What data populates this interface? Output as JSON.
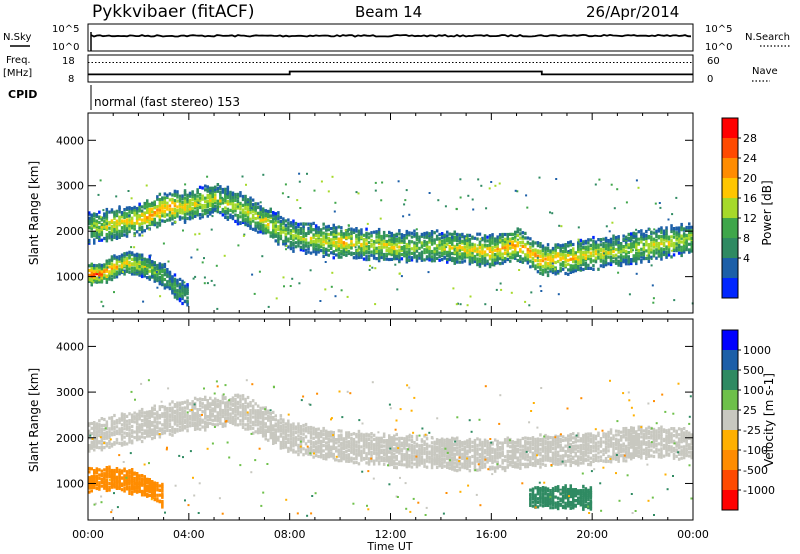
{
  "header": {
    "station": "Pykkvibaer (fitACF)",
    "beam": "Beam 14",
    "date": "26/Apr/2014"
  },
  "aux_panels": {
    "nsky_label": "N.Sky",
    "nsearch_label": "N.Search",
    "nsky_ticks": [
      "10^5",
      "10^0"
    ],
    "nsky_right_ticks": [
      "10^5",
      "10^0"
    ],
    "freq_label_1": "Freq.",
    "freq_label_2": "[MHz]",
    "freq_ticks": [
      "18",
      "8"
    ],
    "nave_label": "Nave",
    "nave_ticks": [
      "60",
      "0"
    ],
    "cpid_label": "CPID",
    "cpid_text": "normal (fast stereo) 153"
  },
  "chart_data": [
    {
      "type": "line",
      "title": "",
      "xlabel": "",
      "ylabel": "N.Sky",
      "note": "noise levels, near constant trace",
      "x": [
        "00:00",
        "04:00",
        "08:00",
        "12:00",
        "16:00",
        "20:00",
        "00:00"
      ],
      "series": [
        {
          "name": "N.Sky",
          "values": [
            10000.0,
            10000.0,
            10000.0,
            10000.0,
            10000.0,
            13000.0,
            10000.0
          ]
        },
        {
          "name": "N.Search",
          "values": [
            10000.0,
            10000.0,
            10000.0,
            10000.0,
            10000.0,
            13000.0,
            10000.0
          ]
        }
      ]
    },
    {
      "type": "line",
      "title": "",
      "ylabel": "Freq. [MHz]",
      "x_hours": [
        0,
        2.8,
        3.4,
        8.0,
        8.0,
        18.0,
        18.0,
        24
      ],
      "series": [
        {
          "name": "Freq.",
          "values": [
            10.0,
            10.0,
            10.0,
            10.0,
            11.6,
            11.6,
            10.0,
            10.0
          ]
        },
        {
          "name": "Nave",
          "values": [
            50,
            50,
            50,
            50,
            50,
            50,
            50,
            50
          ]
        }
      ],
      "ylim_freq": [
        8,
        18
      ],
      "ylim_nave": [
        0,
        60
      ]
    },
    {
      "type": "heatmap",
      "title": "",
      "quantity": "Power",
      "unit": "dB",
      "xlabel": "",
      "ylabel": "Slant Range [km]",
      "xlim_hours": [
        0,
        24
      ],
      "ylim": [
        200,
        4600
      ],
      "yticks": [
        1000,
        2000,
        3000,
        4000
      ],
      "colorbar": {
        "label": "Power [dB]",
        "ticks": [
          "28",
          "24",
          "20",
          "16",
          "12",
          "8",
          "4"
        ],
        "colors": [
          "#ff0000",
          "#ff4a00",
          "#ff8c00",
          "#ffc600",
          "#a6d92a",
          "#3fa64a",
          "#2f8a62",
          "#1c5fa8",
          "#0026ff"
        ]
      },
      "bands": [
        {
          "x": [
            0,
            1,
            2,
            3,
            4,
            5,
            6,
            7,
            8,
            9,
            10,
            11,
            12,
            13,
            14,
            15,
            16,
            17,
            18,
            19,
            20,
            21,
            22,
            23,
            24
          ],
          "center": [
            2050,
            2150,
            2250,
            2500,
            2550,
            2700,
            2500,
            2200,
            1900,
            1800,
            1750,
            1700,
            1650,
            1650,
            1650,
            1600,
            1550,
            1700,
            1350,
            1400,
            1500,
            1550,
            1650,
            1750,
            1850
          ],
          "power": [
            14,
            18,
            20,
            22,
            18,
            16,
            16,
            18,
            14,
            16,
            20,
            16,
            18,
            14,
            16,
            18,
            20,
            22,
            22,
            20,
            18,
            14,
            16,
            18,
            14
          ]
        },
        {
          "x": [
            0,
            0.5,
            1,
            1.5,
            2,
            2.5,
            3,
            3.5,
            4
          ],
          "center": [
            1050,
            1050,
            1200,
            1300,
            1250,
            1150,
            1000,
            700,
            550
          ],
          "power": [
            28,
            26,
            20,
            18,
            16,
            14,
            12,
            10,
            8
          ]
        }
      ]
    },
    {
      "type": "heatmap",
      "title": "",
      "quantity": "Velocity",
      "unit": "m s^-1",
      "ylabel": "Slant Range [km]",
      "xlim_hours": [
        0,
        24
      ],
      "ylim": [
        200,
        4600
      ],
      "yticks": [
        1000,
        2000,
        3000,
        4000
      ],
      "colorbar": {
        "label": "Velocity [m s-1]",
        "ticks": [
          "1000",
          "500",
          "100",
          "25",
          "-25",
          "-100",
          "-500",
          "-1000"
        ],
        "colors": [
          "#0000ff",
          "#1c5fa8",
          "#2f8a62",
          "#6ec04a",
          "#c8c8c0",
          "#ffb000",
          "#ff8c00",
          "#ff4a00",
          "#ff0000"
        ]
      },
      "bands": [
        {
          "x": [
            0,
            2,
            4,
            6,
            8,
            10,
            12,
            14,
            16,
            18,
            20,
            22,
            24
          ],
          "center": [
            2000,
            2250,
            2500,
            2600,
            2000,
            1800,
            1700,
            1650,
            1600,
            1700,
            1750,
            1900,
            1850
          ],
          "velocity": [
            0,
            0,
            0,
            0,
            0,
            0,
            0,
            0,
            0,
            0,
            0,
            0,
            0
          ]
        },
        {
          "x": [
            0,
            1,
            2,
            3
          ],
          "center": [
            1050,
            1100,
            1000,
            700
          ],
          "velocity": [
            -300,
            -300,
            -200,
            -150
          ]
        },
        {
          "x": [
            17.5,
            20
          ],
          "center": [
            700,
            650
          ],
          "velocity": [
            200,
            150
          ]
        }
      ],
      "xticks": [
        "00:00",
        "04:00",
        "08:00",
        "12:00",
        "16:00",
        "20:00",
        "00:00"
      ],
      "xaxis_title": "Time UT"
    }
  ]
}
